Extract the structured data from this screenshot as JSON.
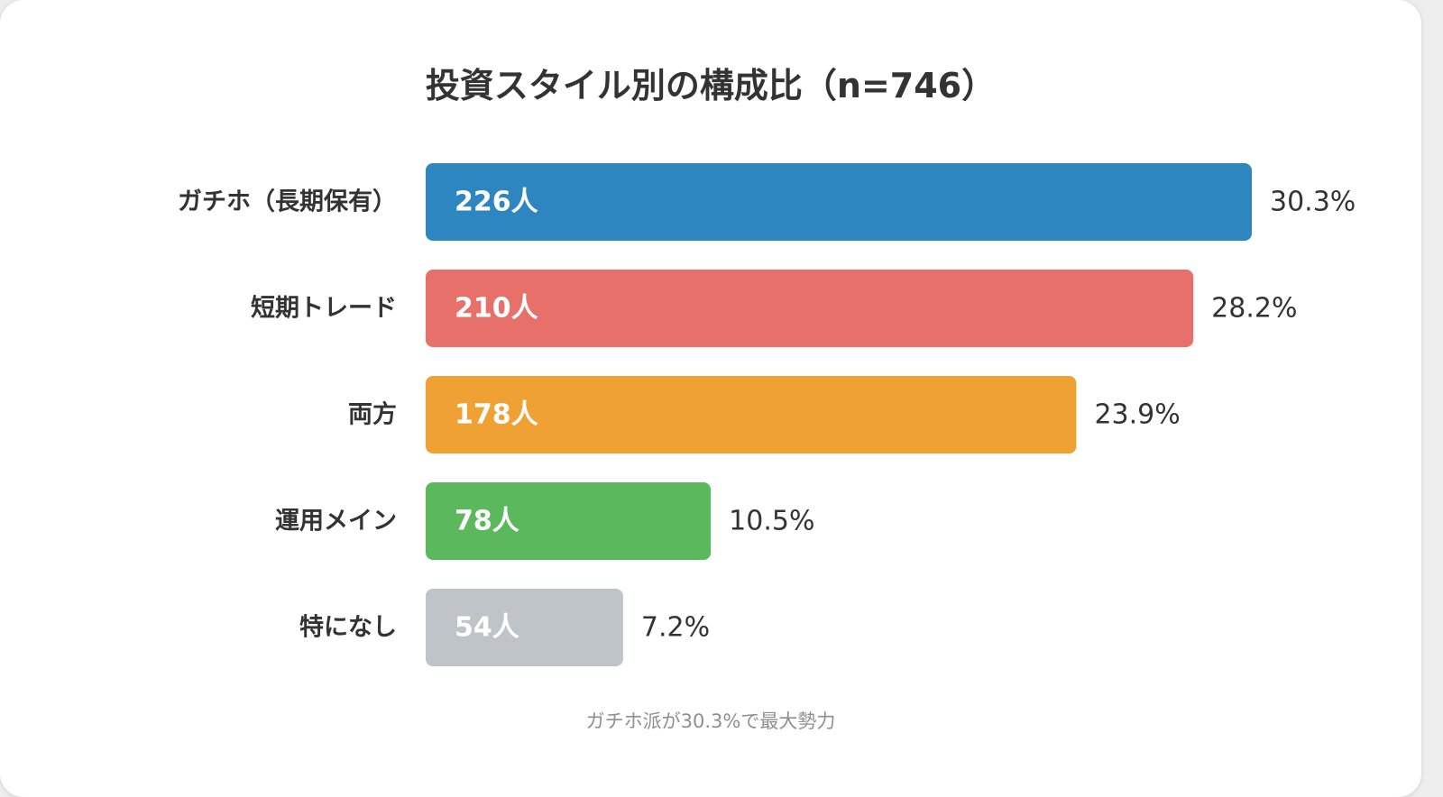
{
  "chart_data": {
    "type": "bar",
    "orientation": "horizontal",
    "title": "投資スタイル別の構成比（n=746）",
    "categories": [
      "ガチホ（長期保有）",
      "短期トレード",
      "両方",
      "運用メイン",
      "特になし"
    ],
    "values": [
      226,
      210,
      178,
      78,
      54
    ],
    "value_labels": [
      "226人",
      "210人",
      "178人",
      "78人",
      "54人"
    ],
    "percent_labels": [
      "30.3%",
      "28.2%",
      "23.9%",
      "10.5%",
      "7.2%"
    ],
    "colors": [
      "#2e86c1",
      "#e8706b",
      "#efa134",
      "#5cb85c",
      "#bfc4c8"
    ],
    "xlim": [
      0,
      226
    ],
    "grid": false,
    "legend": "none",
    "footnote": "ガチホ派が30.3%で最大勢力"
  }
}
